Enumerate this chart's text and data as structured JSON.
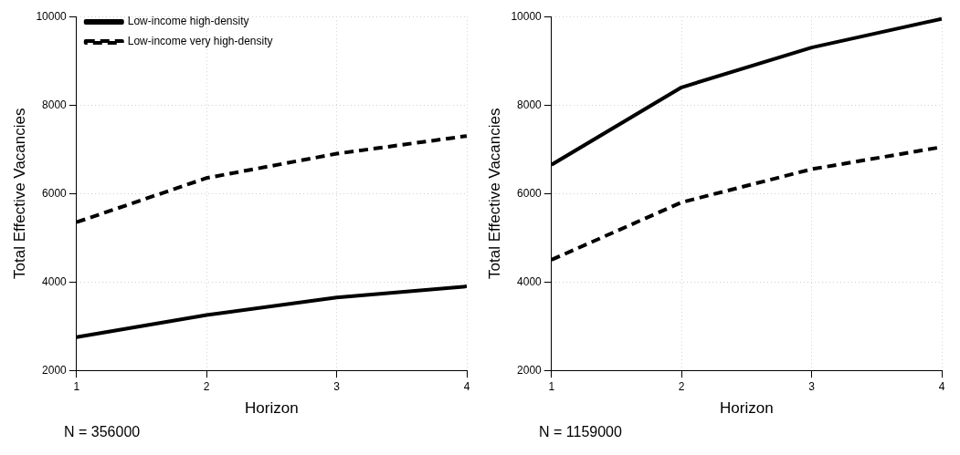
{
  "chart_data": [
    {
      "type": "line",
      "xlabel": "Horizon",
      "ylabel": "Total Effective Vacancies",
      "x": [
        1,
        2,
        3,
        4
      ],
      "xlim": [
        1,
        4
      ],
      "xticks": [
        1,
        2,
        3,
        4
      ],
      "ylim": [
        2000,
        10000
      ],
      "yticks": [
        2000,
        4000,
        6000,
        8000,
        10000
      ],
      "grid": true,
      "legend": "top left",
      "marker": "none",
      "annotations": [
        "N = 356000"
      ],
      "series": [
        {
          "name": "Low-income high-density",
          "color": "#000000",
          "line_style": "solid",
          "values": [
            2750,
            3250,
            3650,
            3900
          ]
        },
        {
          "name": "Low-income very high-density",
          "color": "#000000",
          "line_style": "dashed",
          "values": [
            5350,
            6350,
            6900,
            7300
          ]
        }
      ]
    },
    {
      "type": "line",
      "xlabel": "Horizon",
      "ylabel": "Total Effective Vacancies",
      "x": [
        1,
        2,
        3,
        4
      ],
      "xlim": [
        1,
        4
      ],
      "xticks": [
        1,
        2,
        3,
        4
      ],
      "ylim": [
        2000,
        10000
      ],
      "yticks": [
        2000,
        4000,
        6000,
        8000,
        10000
      ],
      "grid": true,
      "marker": "none",
      "annotations": [
        "N = 1159000"
      ],
      "series": [
        {
          "color": "#000000",
          "line_style": "solid",
          "values": [
            6650,
            8400,
            9300,
            9950
          ]
        },
        {
          "color": "#000000",
          "line_style": "dashed",
          "values": [
            4500,
            5800,
            6550,
            7050
          ]
        }
      ]
    }
  ]
}
